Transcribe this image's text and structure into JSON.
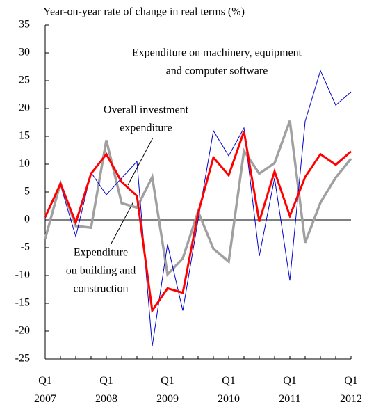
{
  "chart_data": {
    "type": "line",
    "y_axis_title": "Year-on-year rate of change in real terms (%)",
    "categories": [
      "Q1 2007",
      null,
      null,
      null,
      "Q1 2008",
      null,
      null,
      null,
      "Q1 2009",
      null,
      null,
      null,
      "Q1 2010",
      null,
      null,
      null,
      "Q1 2011",
      null,
      null,
      null,
      "Q1 2012"
    ],
    "series": [
      {
        "name": [
          "Expenditure on machinery, equipment",
          "and computer software"
        ],
        "color": "#0000cc",
        "values": [
          0.3,
          6.3,
          -3,
          8.5,
          4.5,
          7.5,
          10.5,
          -22.7,
          -4.4,
          -16.3,
          0,
          16,
          11.5,
          16.5,
          -6.5,
          7.5,
          -10.9,
          17.7,
          26.8,
          20.6,
          23
        ]
      },
      {
        "name": [
          "Overall investment",
          "expenditure"
        ],
        "color": "#ff0000",
        "values": [
          0.5,
          6.5,
          -0.5,
          8.3,
          11.8,
          6.8,
          4.3,
          -16.3,
          -12.3,
          -13.1,
          1.2,
          11.2,
          8,
          15.9,
          -0.3,
          8.7,
          0.7,
          7.7,
          11.8,
          9.9,
          12.3
        ]
      },
      {
        "name": [
          "Expenditure",
          "on building and",
          "construction"
        ],
        "color": "#a0a0a0",
        "values": [
          -3.4,
          6.6,
          -1.1,
          -1.4,
          14.3,
          3,
          2.2,
          7.7,
          -9.8,
          -6.9,
          1.5,
          -5.2,
          -7.5,
          12.4,
          8.3,
          10.2,
          17.8,
          -4.1,
          3.1,
          7.6,
          11
        ]
      }
    ],
    "ylim": [
      -25,
      35
    ],
    "yticks": [
      -25,
      -20,
      -15,
      -10,
      -5,
      0,
      5,
      10,
      15,
      20,
      25,
      30,
      35
    ]
  }
}
